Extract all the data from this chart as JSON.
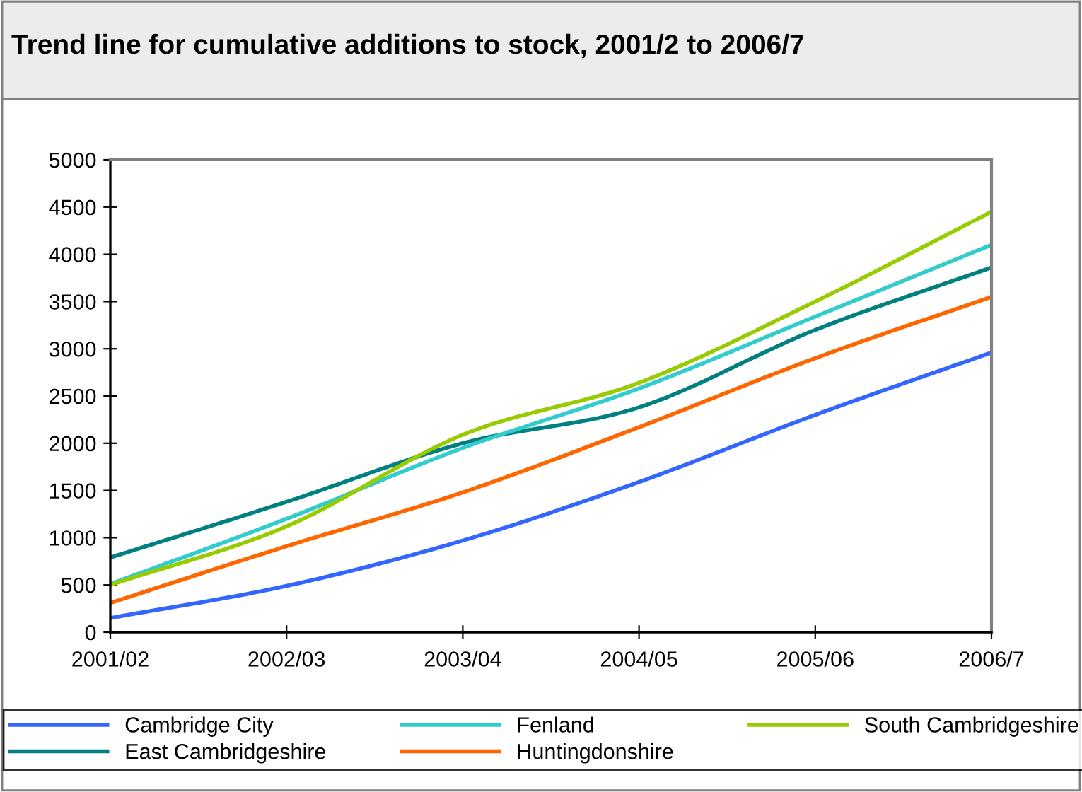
{
  "chart_data": {
    "type": "line",
    "title": "Trend line for cumulative additions to stock, 2001/2 to 2006/7",
    "categories": [
      "2001/02",
      "2002/03",
      "2003/04",
      "2004/05",
      "2005/06",
      "2006/7"
    ],
    "ylim": [
      0,
      5000
    ],
    "yticks": [
      0,
      500,
      1000,
      1500,
      2000,
      2500,
      3000,
      3500,
      4000,
      4500,
      5000
    ],
    "grid": false,
    "legend": "bottom",
    "marker": "none",
    "line_style": "solid",
    "series": [
      {
        "name": "Cambridge City",
        "color": "#3366ff",
        "values": [
          150,
          490,
          970,
          1590,
          2300,
          2960
        ]
      },
      {
        "name": "East Cambridgeshire",
        "color": "#008080",
        "values": [
          790,
          1380,
          2000,
          2380,
          3200,
          3860
        ]
      },
      {
        "name": "Fenland",
        "color": "#33cccc",
        "values": [
          510,
          1200,
          1950,
          2580,
          3340,
          4100
        ]
      },
      {
        "name": "Huntingdonshire",
        "color": "#ff6600",
        "values": [
          310,
          910,
          1480,
          2170,
          2900,
          3550
        ]
      },
      {
        "name": "South Cambridgeshire",
        "color": "#99cc00",
        "values": [
          500,
          1120,
          2090,
          2640,
          3500,
          4450
        ]
      }
    ]
  }
}
